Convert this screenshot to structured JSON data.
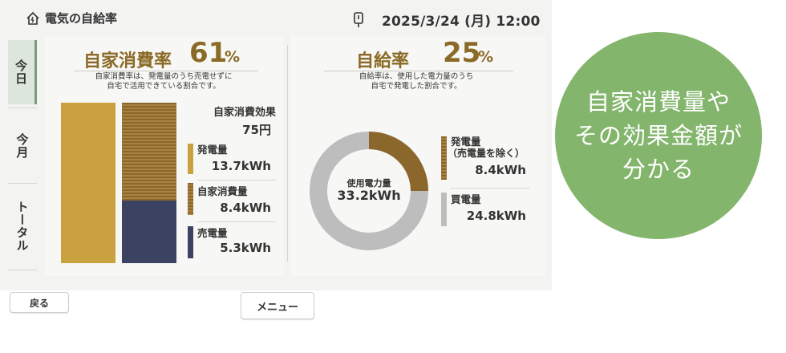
{
  "header": {
    "title": "電気の自給率",
    "datetime": "2025/3/24 (月) 12:00",
    "home_icon": "home-icon",
    "meter_icon": "meter-icon"
  },
  "sidebar": {
    "tabs": [
      {
        "label": "今日",
        "active": true
      },
      {
        "label": "今月",
        "active": false
      },
      {
        "label": "トータル",
        "active": false
      }
    ]
  },
  "self_consumption": {
    "label": "自家消費率",
    "value": "61",
    "unit": "%",
    "fraction": 0.61,
    "note_line1": "自家消費率は、発電量のうち売電せずに",
    "note_line2": "自宅で活用できている割合です。",
    "effect_label": "自家消費効果",
    "effect_value": "75円",
    "items": [
      {
        "label": "発電量",
        "value": "13.7kWh",
        "color": "#c9a23f"
      },
      {
        "label": "自家消費量",
        "value": "8.4kWh",
        "color": "#8c672c"
      },
      {
        "label": "売電量",
        "value": "5.3kWh",
        "color": "#3b4262"
      }
    ]
  },
  "self_sufficiency": {
    "label": "自給率",
    "value": "25",
    "unit": "%",
    "fraction": 0.25,
    "note_line1": "自給率は、使用した電力量のうち",
    "note_line2": "自宅で発電した割合です。",
    "donut_label": "使用電力量",
    "donut_value": "33.2kWh",
    "items": [
      {
        "label1": "発電量",
        "label2": "（売電量を除く）",
        "value": "8.4kWh",
        "color": "#8c672c"
      },
      {
        "label1": "買電量",
        "label2": "",
        "value": "24.8kWh",
        "color": "#bdbdbd"
      }
    ]
  },
  "footer": {
    "back_label": "戻る",
    "menu_label": "メニュー"
  },
  "callout": {
    "line1": "自家消費量や",
    "line2": "その効果金額が",
    "line3": "分かる",
    "color": "#83b56c"
  }
}
